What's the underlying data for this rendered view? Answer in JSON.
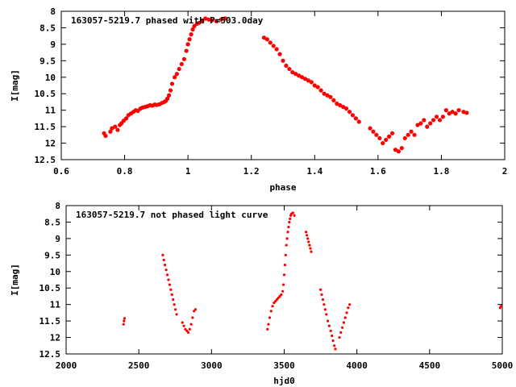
{
  "chart_data": [
    {
      "type": "scatter",
      "title": "163057-5219.7 phased with P=503.0day",
      "xlabel": "phase",
      "ylabel": "I[mag]",
      "xlim": [
        0.6,
        2.0
      ],
      "ylim": [
        12.5,
        8.0
      ],
      "y_inverted": true,
      "x_ticks": [
        0.6,
        0.8,
        1.0,
        1.2,
        1.4,
        1.6,
        1.8,
        2.0
      ],
      "x_tick_labels": [
        "0.6",
        "0.8",
        "1",
        "1.2",
        "1.4",
        "1.6",
        "1.8",
        "2"
      ],
      "y_ticks": [
        8,
        8.5,
        9,
        9.5,
        10,
        10.5,
        11,
        11.5,
        12,
        12.5
      ],
      "y_tick_labels": [
        "8",
        "8.5",
        "9",
        "9.5",
        "10",
        "10.5",
        "11",
        "11.5",
        "12",
        "12.5"
      ],
      "marker_color": "#ff0000",
      "marker_size": 2.6,
      "grid": false,
      "series": [
        {
          "values": [
            [
              0.735,
              11.7
            ],
            [
              0.74,
              11.78
            ],
            [
              0.755,
              11.65
            ],
            [
              0.76,
              11.55
            ],
            [
              0.77,
              11.5
            ],
            [
              0.778,
              11.6
            ],
            [
              0.785,
              11.45
            ],
            [
              0.79,
              11.4
            ],
            [
              0.797,
              11.32
            ],
            [
              0.805,
              11.25
            ],
            [
              0.812,
              11.15
            ],
            [
              0.82,
              11.1
            ],
            [
              0.828,
              11.05
            ],
            [
              0.835,
              11.0
            ],
            [
              0.842,
              11.02
            ],
            [
              0.85,
              10.95
            ],
            [
              0.857,
              10.92
            ],
            [
              0.865,
              10.9
            ],
            [
              0.872,
              10.88
            ],
            [
              0.88,
              10.85
            ],
            [
              0.888,
              10.86
            ],
            [
              0.895,
              10.83
            ],
            [
              0.902,
              10.84
            ],
            [
              0.91,
              10.82
            ],
            [
              0.918,
              10.78
            ],
            [
              0.925,
              10.75
            ],
            [
              0.93,
              10.72
            ],
            [
              0.935,
              10.65
            ],
            [
              0.94,
              10.55
            ],
            [
              0.945,
              10.4
            ],
            [
              0.95,
              10.2
            ],
            [
              0.958,
              10.0
            ],
            [
              0.965,
              9.9
            ],
            [
              0.972,
              9.75
            ],
            [
              0.98,
              9.6
            ],
            [
              0.988,
              9.45
            ],
            [
              0.995,
              9.2
            ],
            [
              1.0,
              9.0
            ],
            [
              1.005,
              8.85
            ],
            [
              1.01,
              8.7
            ],
            [
              1.015,
              8.55
            ],
            [
              1.02,
              8.45
            ],
            [
              1.028,
              8.38
            ],
            [
              1.035,
              8.35
            ],
            [
              1.045,
              8.3
            ],
            [
              1.055,
              8.22
            ],
            [
              1.065,
              8.25
            ],
            [
              1.075,
              8.28
            ],
            [
              1.09,
              8.3
            ],
            [
              1.105,
              8.25
            ],
            [
              1.118,
              8.22
            ],
            [
              1.24,
              8.8
            ],
            [
              1.25,
              8.85
            ],
            [
              1.26,
              8.95
            ],
            [
              1.27,
              9.05
            ],
            [
              1.28,
              9.15
            ],
            [
              1.29,
              9.3
            ],
            [
              1.3,
              9.5
            ],
            [
              1.31,
              9.65
            ],
            [
              1.32,
              9.75
            ],
            [
              1.33,
              9.85
            ],
            [
              1.34,
              9.9
            ],
            [
              1.35,
              9.95
            ],
            [
              1.36,
              10.0
            ],
            [
              1.37,
              10.05
            ],
            [
              1.38,
              10.1
            ],
            [
              1.39,
              10.15
            ],
            [
              1.4,
              10.25
            ],
            [
              1.41,
              10.3
            ],
            [
              1.42,
              10.4
            ],
            [
              1.43,
              10.5
            ],
            [
              1.44,
              10.55
            ],
            [
              1.45,
              10.6
            ],
            [
              1.46,
              10.7
            ],
            [
              1.47,
              10.8
            ],
            [
              1.48,
              10.85
            ],
            [
              1.49,
              10.9
            ],
            [
              1.5,
              10.95
            ],
            [
              1.51,
              11.05
            ],
            [
              1.52,
              11.15
            ],
            [
              1.53,
              11.25
            ],
            [
              1.54,
              11.35
            ],
            [
              1.575,
              11.55
            ],
            [
              1.585,
              11.65
            ],
            [
              1.595,
              11.75
            ],
            [
              1.605,
              11.85
            ],
            [
              1.615,
              12.0
            ],
            [
              1.625,
              11.9
            ],
            [
              1.635,
              11.8
            ],
            [
              1.645,
              11.7
            ],
            [
              1.655,
              12.2
            ],
            [
              1.665,
              12.25
            ],
            [
              1.675,
              12.15
            ],
            [
              1.685,
              11.85
            ],
            [
              1.695,
              11.75
            ],
            [
              1.705,
              11.65
            ],
            [
              1.715,
              11.75
            ],
            [
              1.725,
              11.45
            ],
            [
              1.735,
              11.4
            ],
            [
              1.745,
              11.3
            ],
            [
              1.755,
              11.5
            ],
            [
              1.765,
              11.4
            ],
            [
              1.775,
              11.3
            ],
            [
              1.785,
              11.2
            ],
            [
              1.795,
              11.3
            ],
            [
              1.805,
              11.2
            ],
            [
              1.815,
              11.0
            ],
            [
              1.825,
              11.1
            ],
            [
              1.835,
              11.05
            ],
            [
              1.845,
              11.1
            ],
            [
              1.855,
              11.0
            ],
            [
              1.87,
              11.05
            ],
            [
              1.88,
              11.08
            ]
          ]
        }
      ]
    },
    {
      "type": "scatter",
      "title": "163057-5219.7 not phased light curve",
      "xlabel": "hjd0",
      "ylabel": "I[mag]",
      "xlim": [
        2000,
        5000
      ],
      "ylim": [
        12.5,
        8.0
      ],
      "y_inverted": true,
      "x_ticks": [
        2000,
        2500,
        3000,
        3500,
        4000,
        4500,
        5000
      ],
      "x_tick_labels": [
        "2000",
        "2500",
        "3000",
        "3500",
        "4000",
        "4500",
        "5000"
      ],
      "y_ticks": [
        8,
        8.5,
        9,
        9.5,
        10,
        10.5,
        11,
        11.5,
        12,
        12.5
      ],
      "y_tick_labels": [
        "8",
        "8.5",
        "9",
        "9.5",
        "10",
        "10.5",
        "11",
        "11.5",
        "12",
        "12.5"
      ],
      "marker_color": "#ff0000",
      "marker_size": 1.6,
      "grid": false,
      "series": [
        {
          "values": [
            [
              2395,
              11.6
            ],
            [
              2398,
              11.5
            ],
            [
              2402,
              11.42
            ],
            [
              2665,
              9.5
            ],
            [
              2672,
              9.65
            ],
            [
              2680,
              9.8
            ],
            [
              2688,
              9.95
            ],
            [
              2696,
              10.1
            ],
            [
              2704,
              10.25
            ],
            [
              2712,
              10.4
            ],
            [
              2720,
              10.55
            ],
            [
              2728,
              10.7
            ],
            [
              2736,
              10.85
            ],
            [
              2744,
              11.0
            ],
            [
              2752,
              11.15
            ],
            [
              2760,
              11.3
            ],
            [
              2800,
              11.55
            ],
            [
              2810,
              11.65
            ],
            [
              2820,
              11.75
            ],
            [
              2830,
              11.8
            ],
            [
              2840,
              11.85
            ],
            [
              2850,
              11.75
            ],
            [
              2860,
              11.6
            ],
            [
              2870,
              11.4
            ],
            [
              2880,
              11.2
            ],
            [
              2890,
              11.15
            ],
            [
              3385,
              11.75
            ],
            [
              3392,
              11.6
            ],
            [
              3400,
              11.4
            ],
            [
              3410,
              11.2
            ],
            [
              3420,
              11.05
            ],
            [
              3430,
              10.95
            ],
            [
              3440,
              10.9
            ],
            [
              3450,
              10.85
            ],
            [
              3460,
              10.8
            ],
            [
              3470,
              10.75
            ],
            [
              3480,
              10.7
            ],
            [
              3490,
              10.6
            ],
            [
              3495,
              10.4
            ],
            [
              3500,
              10.1
            ],
            [
              3505,
              9.8
            ],
            [
              3510,
              9.5
            ],
            [
              3515,
              9.2
            ],
            [
              3520,
              9.0
            ],
            [
              3525,
              8.8
            ],
            [
              3530,
              8.65
            ],
            [
              3535,
              8.5
            ],
            [
              3540,
              8.4
            ],
            [
              3545,
              8.3
            ],
            [
              3550,
              8.25
            ],
            [
              3560,
              8.22
            ],
            [
              3570,
              8.3
            ],
            [
              3650,
              8.8
            ],
            [
              3656,
              8.9
            ],
            [
              3662,
              9.0
            ],
            [
              3668,
              9.1
            ],
            [
              3674,
              9.2
            ],
            [
              3680,
              9.3
            ],
            [
              3686,
              9.4
            ],
            [
              3750,
              10.55
            ],
            [
              3758,
              10.7
            ],
            [
              3766,
              10.85
            ],
            [
              3774,
              11.0
            ],
            [
              3782,
              11.15
            ],
            [
              3790,
              11.3
            ],
            [
              3800,
              11.5
            ],
            [
              3810,
              11.65
            ],
            [
              3820,
              11.8
            ],
            [
              3828,
              11.95
            ],
            [
              3836,
              12.1
            ],
            [
              3845,
              12.25
            ],
            [
              3852,
              12.35
            ],
            [
              3880,
              12.0
            ],
            [
              3890,
              11.85
            ],
            [
              3900,
              11.7
            ],
            [
              3910,
              11.55
            ],
            [
              3920,
              11.4
            ],
            [
              3930,
              11.25
            ],
            [
              3940,
              11.1
            ],
            [
              3950,
              11.0
            ],
            [
              4985,
              11.1
            ],
            [
              4992,
              11.05
            ]
          ]
        }
      ]
    }
  ]
}
